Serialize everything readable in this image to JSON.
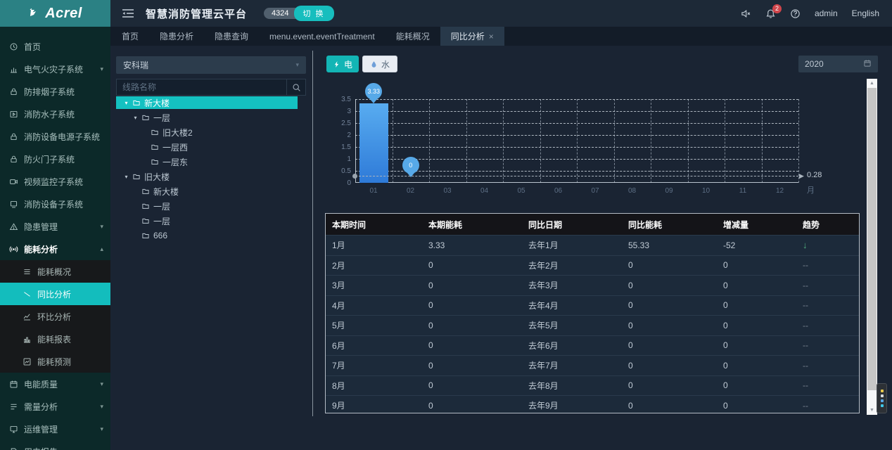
{
  "app": {
    "logo_text": "Acrel",
    "title": "智慧消防管理云平台",
    "alarm_count": "4324",
    "switch_label": "切 换",
    "notification_count": "2",
    "user": "admin",
    "language": "English"
  },
  "tabs": [
    {
      "id": "home",
      "label": "首页",
      "active": false,
      "closable": false
    },
    {
      "id": "hazard-analysis",
      "label": "隐患分析",
      "active": false,
      "closable": false
    },
    {
      "id": "hazard-query",
      "label": "隐患查询",
      "active": false,
      "closable": false
    },
    {
      "id": "event-treatment",
      "label": "menu.event.eventTreatment",
      "active": false,
      "closable": false
    },
    {
      "id": "energy-overview",
      "label": "能耗概况",
      "active": false,
      "closable": false
    },
    {
      "id": "yoy-analysis",
      "label": "同比分析",
      "active": true,
      "closable": true
    }
  ],
  "sidebar": {
    "items": [
      {
        "id": "home",
        "label": "首页",
        "icon": "clock"
      },
      {
        "id": "electrical-fire",
        "label": "电气火灾子系统",
        "icon": "chart",
        "arrow": "down"
      },
      {
        "id": "smoke-control",
        "label": "防排烟子系统",
        "icon": "lock"
      },
      {
        "id": "fire-water",
        "label": "消防水子系统",
        "icon": "play-square"
      },
      {
        "id": "fire-equipment-power",
        "label": "消防设备电源子系统",
        "icon": "lock"
      },
      {
        "id": "fire-door",
        "label": "防火门子系统",
        "icon": "lock"
      },
      {
        "id": "video-monitor",
        "label": "视频监控子系统",
        "icon": "video"
      },
      {
        "id": "fire-equipment",
        "label": "消防设备子系统",
        "icon": "device"
      },
      {
        "id": "hazard-management",
        "label": "隐患管理",
        "icon": "warning",
        "arrow": "down"
      },
      {
        "id": "energy-analysis",
        "label": "能耗分析",
        "icon": "signal",
        "arrow": "up",
        "bold": true,
        "children": [
          {
            "id": "energy-overview",
            "label": "能耗概况",
            "icon": "list"
          },
          {
            "id": "yoy-analysis",
            "label": "同比分析",
            "icon": "trend",
            "active": true
          },
          {
            "id": "mom-analysis",
            "label": "环比分析",
            "icon": "line-chart"
          },
          {
            "id": "energy-report",
            "label": "能耗报表",
            "icon": "report-bars"
          },
          {
            "id": "energy-forecast",
            "label": "能耗预测",
            "icon": "forecast"
          }
        ]
      },
      {
        "id": "power-quality",
        "label": "电能质量",
        "icon": "calendar",
        "arrow": "down"
      },
      {
        "id": "demand-analysis",
        "label": "需量分析",
        "icon": "rows",
        "arrow": "down"
      },
      {
        "id": "ops-management",
        "label": "运维管理",
        "icon": "monitor",
        "arrow": "down"
      },
      {
        "id": "electricity-report",
        "label": "用电报告",
        "icon": "report"
      }
    ]
  },
  "tree_panel": {
    "dropdown_value": "安科瑞",
    "search_placeholder": "线路名称",
    "nodes": [
      {
        "label": "新大楼",
        "depth": 0,
        "expanded": true,
        "selected": true
      },
      {
        "label": "一层",
        "depth": 1,
        "expanded": true
      },
      {
        "label": "旧大楼2",
        "depth": 2
      },
      {
        "label": "一层西",
        "depth": 2
      },
      {
        "label": "一层东",
        "depth": 2
      },
      {
        "label": "旧大楼",
        "depth": 0,
        "expanded": true
      },
      {
        "label": "新大楼",
        "depth": 1
      },
      {
        "label": "一层",
        "depth": 1
      },
      {
        "label": "一层",
        "depth": 1
      },
      {
        "label": "666",
        "depth": 1
      }
    ]
  },
  "toolbar": {
    "electric_label": "电",
    "water_label": "水",
    "year_value": "2020"
  },
  "chart_data": {
    "type": "bar",
    "x": [
      "01",
      "02",
      "03",
      "04",
      "05",
      "06",
      "07",
      "08",
      "09",
      "10",
      "11",
      "12"
    ],
    "x_unit": "月",
    "values": [
      3.33,
      0,
      0,
      0,
      0,
      0,
      0,
      0,
      0,
      0,
      0,
      0
    ],
    "point_labels": [
      {
        "index": 0,
        "text": "3.33"
      },
      {
        "index": 1,
        "text": "0"
      }
    ],
    "ylim": [
      0,
      3.5
    ],
    "yticks": [
      0,
      0.5,
      1,
      1.5,
      2,
      2.5,
      3,
      3.5
    ],
    "grid": "dashed",
    "markline": {
      "value": 0.28,
      "label": "0.28"
    },
    "bar_color_top": "#58acf0",
    "bar_color_bottom": "#2e7ad8"
  },
  "table": {
    "headers": [
      "本期时间",
      "本期能耗",
      "同比日期",
      "同比能耗",
      "增减量",
      "趋势"
    ],
    "rows": [
      [
        "1月",
        "3.33",
        "去年1月",
        "55.33",
        "-52",
        "down"
      ],
      [
        "2月",
        "0",
        "去年2月",
        "0",
        "0",
        "--"
      ],
      [
        "3月",
        "0",
        "去年3月",
        "0",
        "0",
        "--"
      ],
      [
        "4月",
        "0",
        "去年4月",
        "0",
        "0",
        "--"
      ],
      [
        "5月",
        "0",
        "去年5月",
        "0",
        "0",
        "--"
      ],
      [
        "6月",
        "0",
        "去年6月",
        "0",
        "0",
        "--"
      ],
      [
        "7月",
        "0",
        "去年7月",
        "0",
        "0",
        "--"
      ],
      [
        "8月",
        "0",
        "去年8月",
        "0",
        "0",
        "--"
      ],
      [
        "9月",
        "0",
        "去年9月",
        "0",
        "0",
        "--"
      ]
    ]
  },
  "colors": {
    "accent_teal": "#13bdbd",
    "logo_bg": "#2b8184",
    "sidebar_bg": "#0c2929",
    "header_bg": "#1d2937",
    "content_bg": "#1a2433",
    "bar_blue": "#3f93e4",
    "balloon_blue": "#57a9e8",
    "trend_down_green": "#52b07e",
    "notif_red": "#d0454b"
  }
}
